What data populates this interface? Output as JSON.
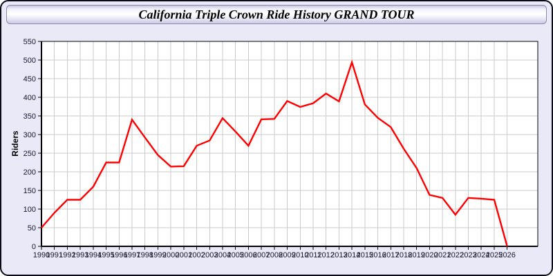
{
  "window": {
    "title": "California Triple Crown Ride History GRAND TOUR"
  },
  "colors": {
    "page_bg": "#E9E9F8",
    "titlebar_border": "#8A8AA5",
    "plot_bg": "#FFFFFF",
    "gridline": "#CBCBCB",
    "axis": "#000000",
    "tick_label": "#16162E",
    "line": "#FF0000"
  },
  "chart_data": {
    "type": "line",
    "title": "California Triple Crown Ride History GRAND TOUR",
    "xlabel": "",
    "ylabel": "Riders",
    "x": [
      1990,
      1991,
      1992,
      1993,
      1994,
      1995,
      1996,
      1997,
      1998,
      1999,
      2000,
      2001,
      2002,
      2003,
      2004,
      2005,
      2006,
      2007,
      2008,
      2009,
      2010,
      2011,
      2012,
      2013,
      2014,
      2015,
      2016,
      2017,
      2018,
      2019,
      2020,
      2021,
      2022,
      2023,
      2024,
      2025,
      2026
    ],
    "series": [
      {
        "name": "Riders",
        "color": "#FF0000",
        "values": [
          50,
          90,
          125,
          125,
          160,
          225,
          225,
          340,
          292,
          245,
          214,
          215,
          270,
          284,
          344,
          308,
          270,
          341,
          342,
          390,
          374,
          384,
          410,
          389,
          494,
          381,
          345,
          320,
          262,
          210,
          138,
          130,
          85,
          130,
          128,
          125,
          0
        ]
      }
    ],
    "ylim": [
      0,
      550
    ],
    "ytick_step": 50,
    "grid": true,
    "legend": false
  }
}
